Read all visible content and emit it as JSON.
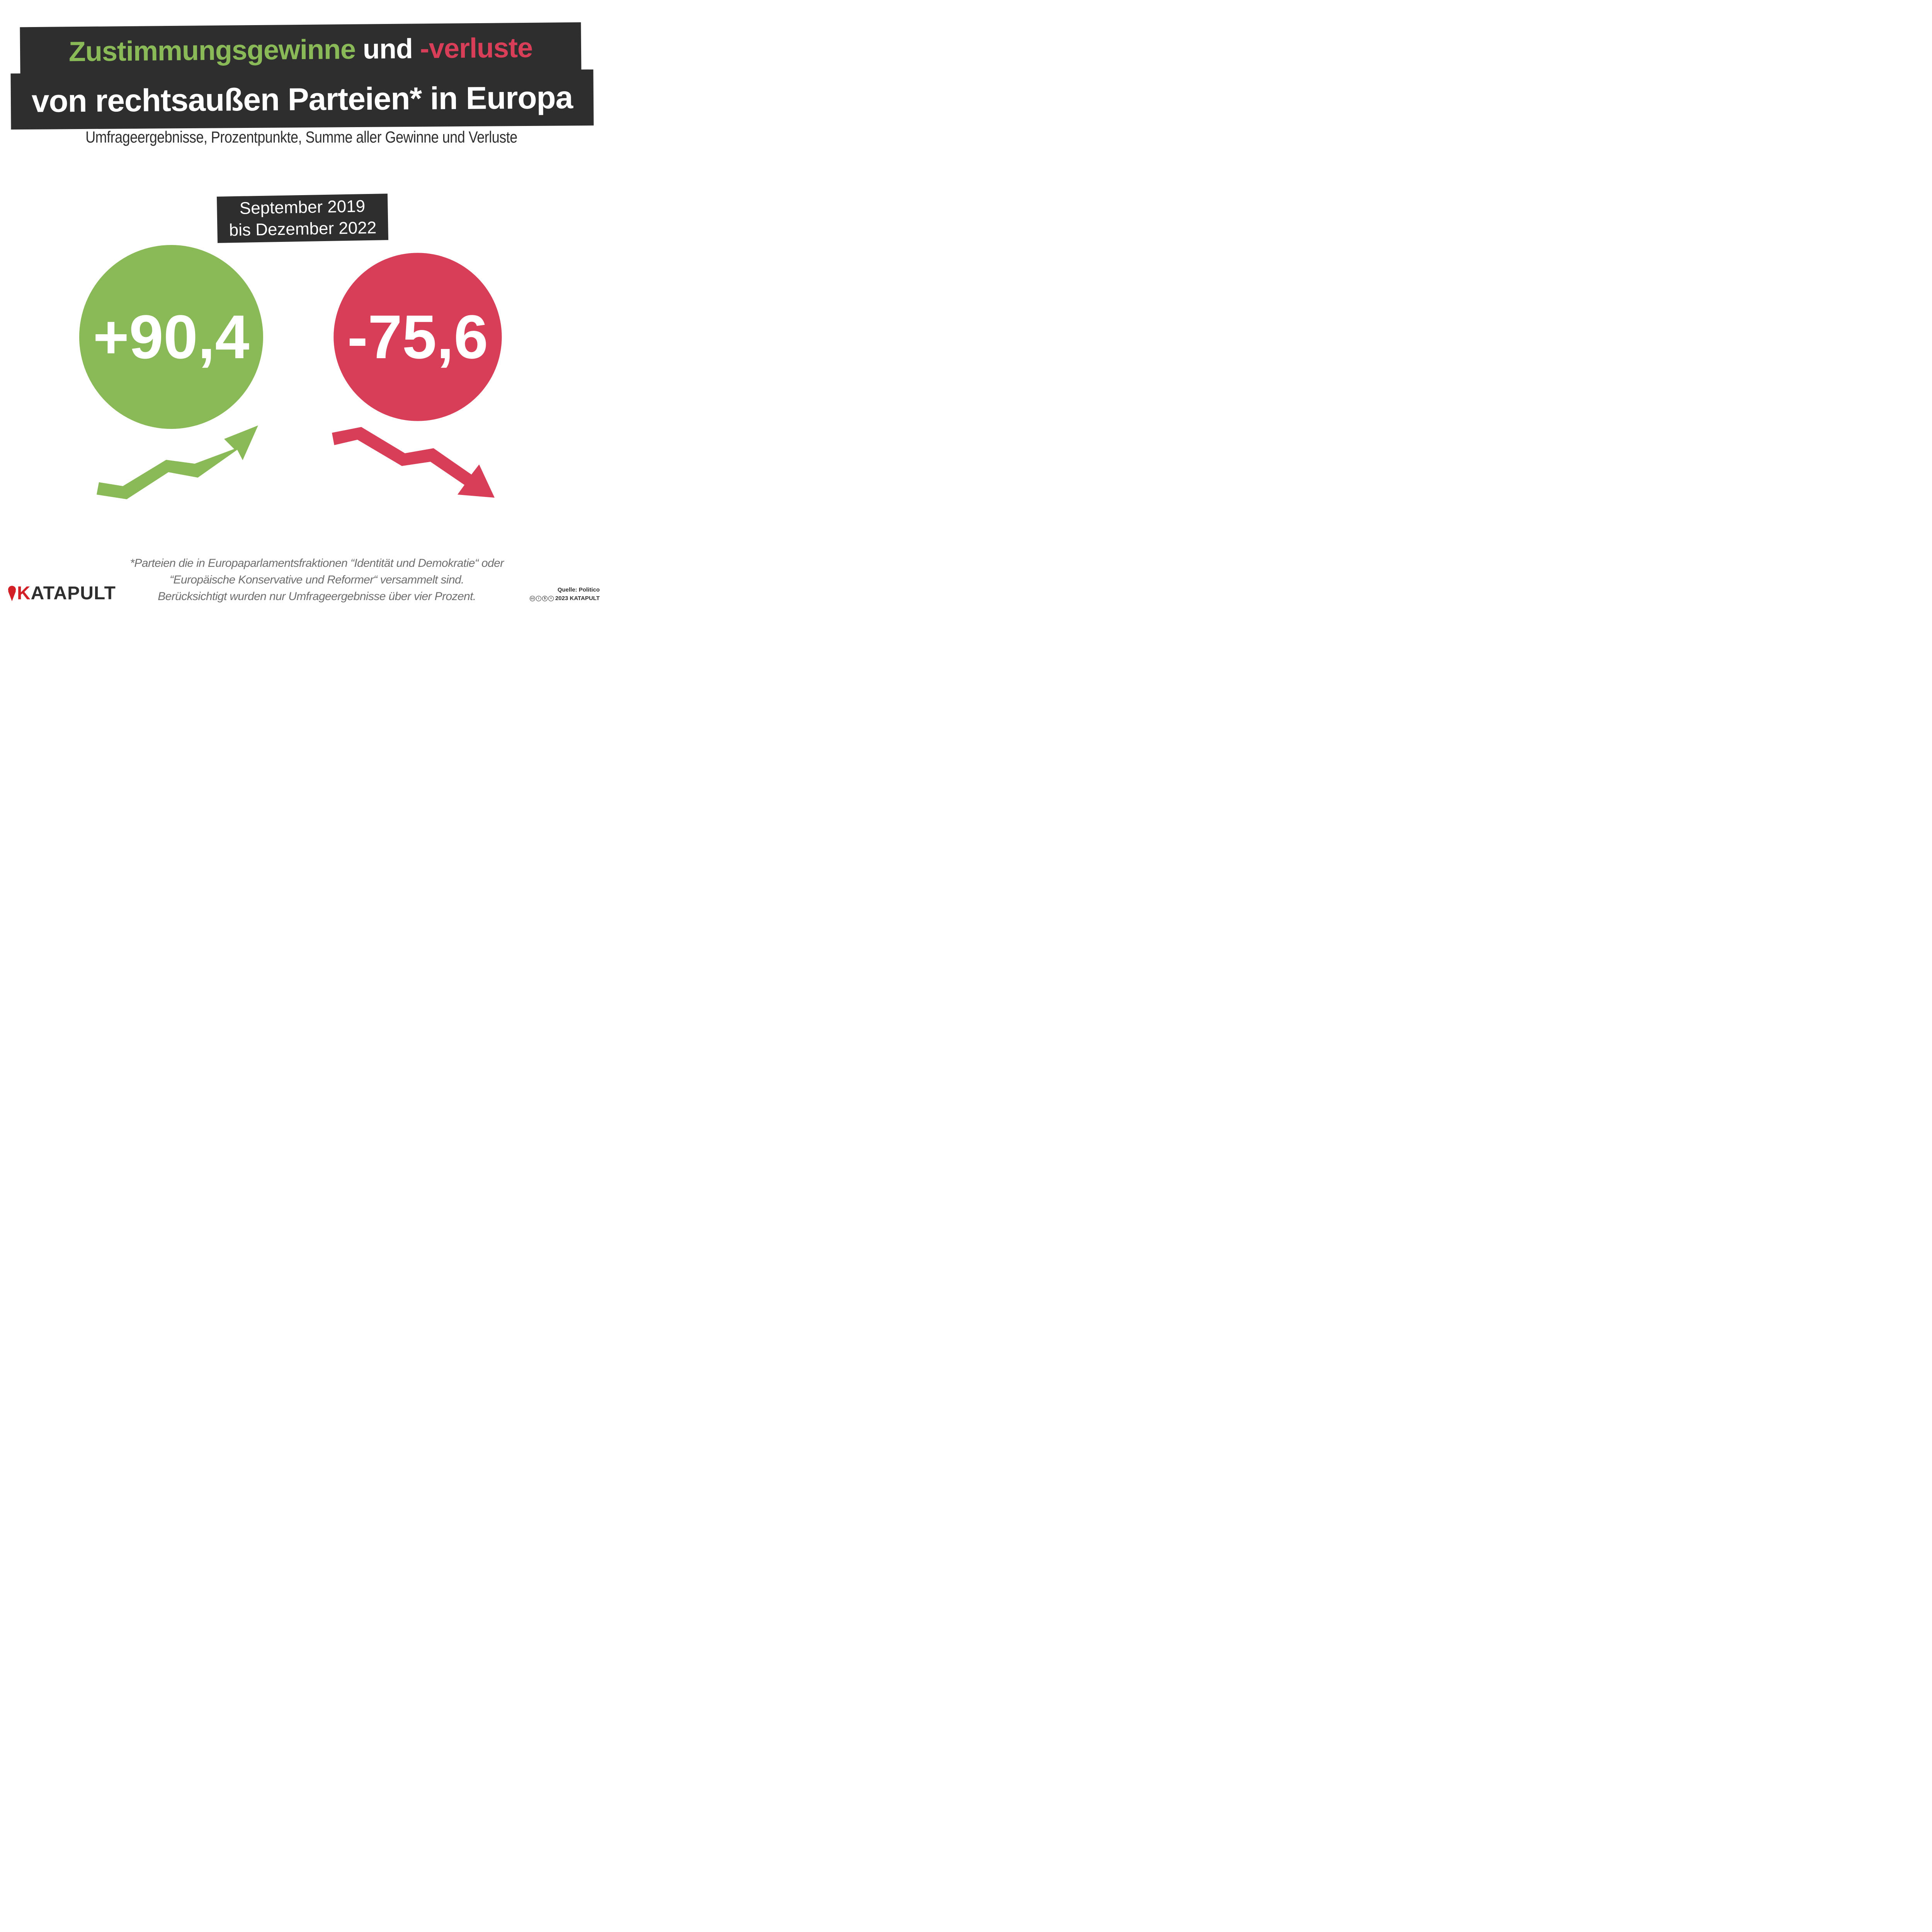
{
  "title": {
    "line1_part1": "Zustimmungsgewinne",
    "line1_part2": "und",
    "line1_part3": "-verluste",
    "line2": "von rechtsaußen Parteien* in Europa"
  },
  "subtitle": "Umfrageergebnisse, Prozentpunkte, Summe aller Gewinne und Verluste",
  "period": {
    "line1": "September 2019",
    "line2": "bis Dezember 2022"
  },
  "chart_data": {
    "type": "bubble",
    "title": "Zustimmungsgewinne und -verluste von rechtsaußen Parteien* in Europa",
    "unit": "Prozentpunkte",
    "period": "September 2019 bis Dezember 2022",
    "series": [
      {
        "name": "Gewinne",
        "value": 90.4,
        "label": "+90,4",
        "color": "#8aba57",
        "trend": "up"
      },
      {
        "name": "Verluste",
        "value": -75.6,
        "label": "-75,6",
        "color": "#d83e58",
        "trend": "down"
      }
    ]
  },
  "footnote": {
    "line1": "*Parteien die in Europaparlamentsfraktionen “Identität und Demokratie“ oder",
    "line2": "“Europäische Konservative und Reformer“ versammelt sind.",
    "line3": "Berücksichtigt wurden nur Umfrageergebnisse über vier Prozent."
  },
  "logo": {
    "first_letter": "K",
    "rest": "ATAPULT"
  },
  "source": {
    "label": "Quelle: Politico",
    "copyright": "2023 KATAPULT",
    "license_icons": [
      "cc-icon",
      "by-icon",
      "nc-icon",
      "nd-icon"
    ]
  },
  "colors": {
    "dark": "#2e2e2e",
    "green": "#8aba57",
    "red": "#d83e58",
    "brand_red": "#d32027",
    "gray_text": "#6e6e6e"
  }
}
